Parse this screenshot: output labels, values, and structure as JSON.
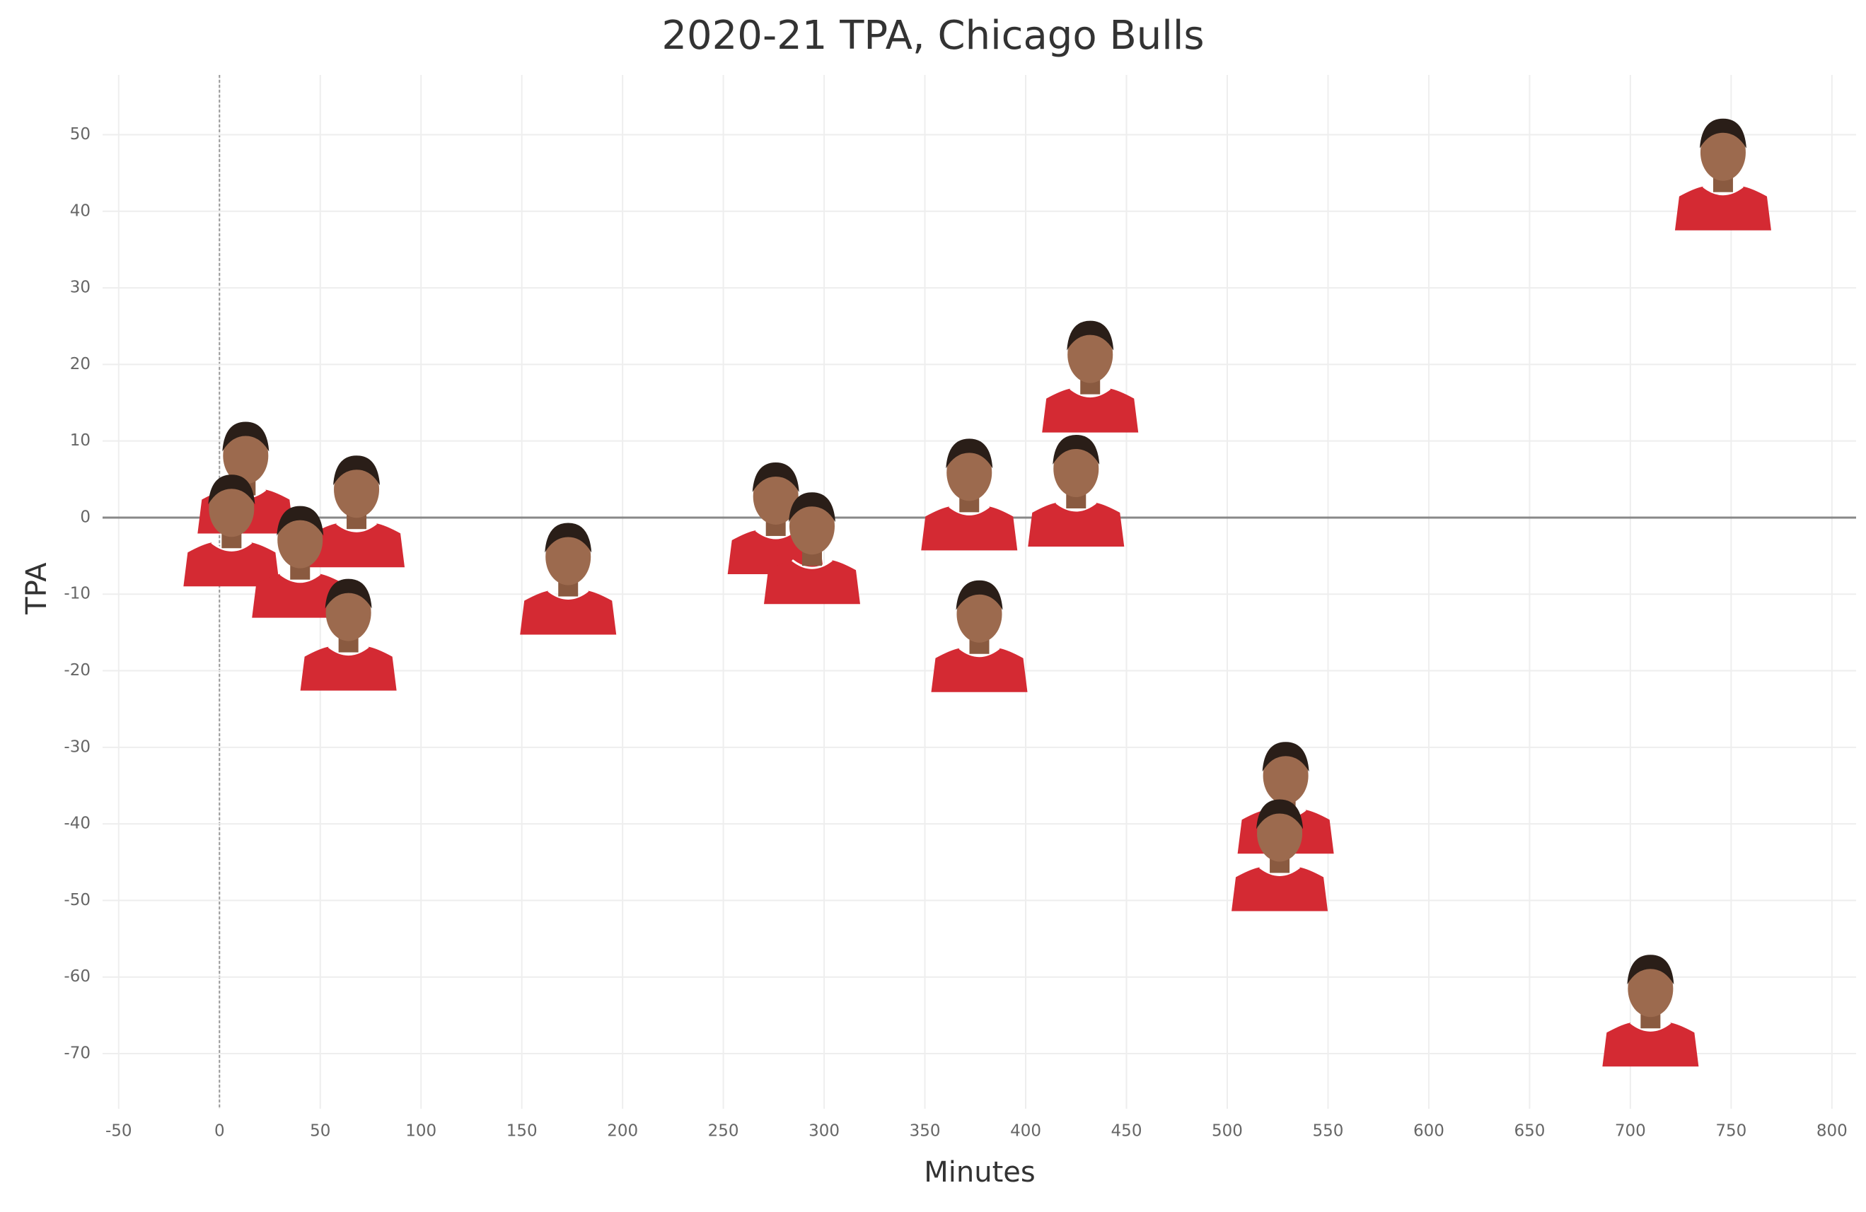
{
  "chart_data": {
    "type": "scatter",
    "title": "2020-21 TPA, Chicago Bulls",
    "x_label": "Minutes",
    "y_label": "TPA",
    "x": [
      746,
      432,
      425,
      372,
      377,
      276,
      294,
      173,
      13,
      6,
      68,
      40,
      64,
      529,
      526,
      710
    ],
    "values": [
      44.9,
      18.5,
      3.6,
      3.1,
      -15.4,
      0,
      -3.9,
      -7.9,
      5.3,
      -1.6,
      0.9,
      -5.7,
      -15.2,
      -36.5,
      -44,
      -64.3
    ],
    "color": "#d42a33",
    "xlim": [
      -58,
      812
    ],
    "ylim": [
      -77.2,
      57.8
    ],
    "xticks": [
      -50,
      0,
      50,
      100,
      150,
      200,
      250,
      300,
      350,
      400,
      450,
      500,
      550,
      600,
      650,
      700,
      750,
      800
    ],
    "yticks": [
      -70,
      -60,
      -50,
      -40,
      -30,
      -20,
      -10,
      0,
      10,
      20,
      30,
      40,
      50
    ],
    "grid": true
  }
}
